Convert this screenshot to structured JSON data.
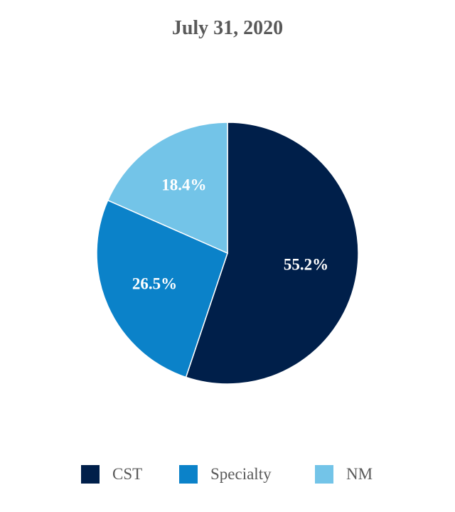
{
  "chart_data": {
    "type": "pie",
    "title": "July 31, 2020",
    "categories": [
      "CST",
      "Specialty",
      "NM"
    ],
    "values": [
      55.2,
      26.5,
      18.4
    ],
    "labels": [
      "55.2%",
      "26.5%",
      "18.4%"
    ],
    "colors": [
      "#001F4A",
      "#0B82C9",
      "#73C4E8"
    ],
    "start_angle": "12 o'clock",
    "direction": "clockwise",
    "legend_position": "bottom"
  }
}
